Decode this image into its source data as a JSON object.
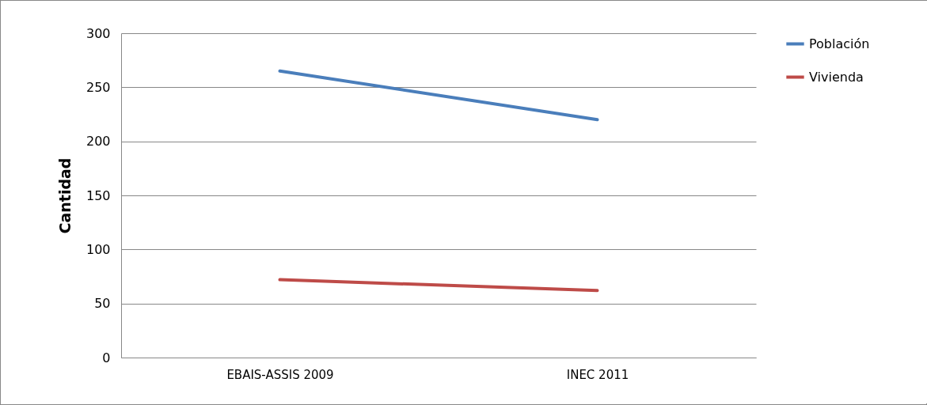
{
  "chart_data": {
    "type": "line",
    "ylabel": "Cantidad",
    "categories": [
      "EBAIS-ASSIS 2009",
      "INEC 2011"
    ],
    "series": [
      {
        "name": "Población",
        "color": "#4a7ebb",
        "values": [
          265,
          220
        ]
      },
      {
        "name": "Vivienda",
        "color": "#be4b48",
        "values": [
          72,
          62
        ]
      }
    ],
    "ylim": [
      0,
      300
    ],
    "yticks": [
      0,
      50,
      100,
      150,
      200,
      250,
      300
    ],
    "grid": "y",
    "legend": "right",
    "marker": "none",
    "line_style": "solid"
  }
}
